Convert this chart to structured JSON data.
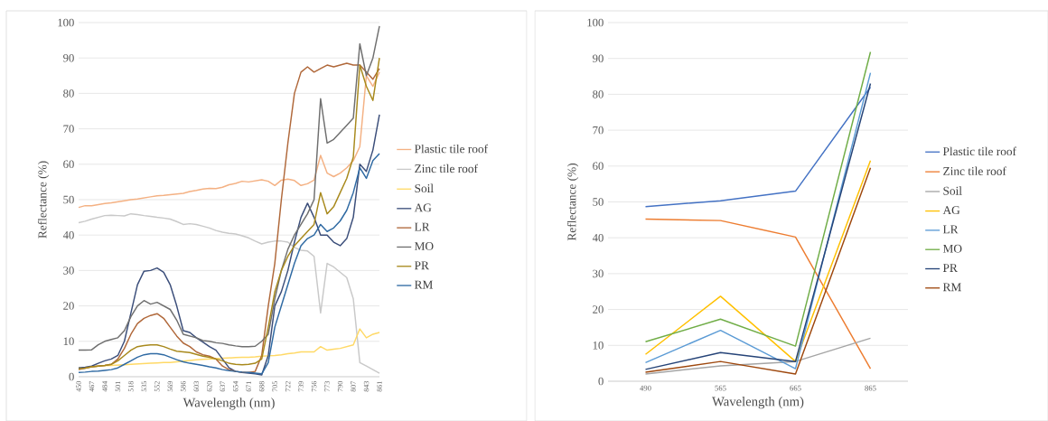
{
  "chart_data": [
    {
      "type": "line",
      "xlabel": "Wavelength (nm)",
      "ylabel": "Reflectance (%)",
      "categories": [
        "450",
        null,
        "467",
        null,
        "484",
        null,
        "501",
        null,
        "518",
        null,
        "535",
        null,
        "552",
        null,
        "569",
        null,
        "586",
        null,
        "603",
        null,
        "620",
        null,
        "637",
        null,
        "654",
        null,
        "671",
        null,
        "688",
        null,
        "705",
        null,
        "722",
        null,
        "739",
        null,
        "756",
        null,
        "773",
        null,
        "790",
        null,
        "807",
        null,
        "843",
        null,
        "861"
      ],
      "series": [
        {
          "name": "Plastic tile roof",
          "color": "#f4b183",
          "values": [
            47.8,
            48.3,
            48.3,
            48.6,
            48.9,
            49.1,
            49.4,
            49.7,
            50.0,
            50.2,
            50.5,
            50.8,
            51.1,
            51.2,
            51.4,
            51.6,
            51.8,
            52.3,
            52.6,
            53.0,
            53.2,
            53.1,
            53.5,
            54.2,
            54.6,
            55.2,
            55.0,
            55.3,
            55.6,
            55.2,
            54.0,
            55.5,
            55.8,
            55.4,
            54.0,
            54.5,
            55.5,
            62.5,
            57.5,
            56.5,
            57.5,
            59.0,
            61.0,
            65.0,
            85.0,
            82.0,
            86.0
          ]
        },
        {
          "name": "Zinc tile roof",
          "color": "#c9c9c9",
          "values": [
            43.5,
            43.9,
            44.5,
            45.0,
            45.5,
            45.6,
            45.5,
            45.4,
            46.0,
            45.8,
            45.5,
            45.3,
            45.0,
            44.8,
            44.5,
            43.8,
            43.0,
            43.2,
            43.0,
            42.5,
            42.0,
            41.3,
            40.8,
            40.5,
            40.3,
            39.8,
            39.2,
            38.3,
            37.5,
            38.0,
            38.3,
            38.3,
            38.0,
            36.5,
            35.7,
            35.5,
            34.0,
            18.0,
            32.0,
            31.0,
            29.5,
            28.0,
            22.0,
            4.0,
            3.0,
            2.0,
            1.0
          ]
        },
        {
          "name": "Soil",
          "color": "#ffd966",
          "values": [
            2.5,
            2.6,
            2.8,
            3.0,
            3.1,
            3.2,
            3.3,
            3.4,
            3.5,
            3.6,
            3.7,
            3.8,
            3.9,
            4.0,
            4.0,
            4.2,
            4.4,
            4.6,
            4.8,
            4.9,
            5.0,
            5.1,
            5.2,
            5.3,
            5.4,
            5.5,
            5.5,
            5.6,
            5.8,
            5.9,
            6.0,
            6.2,
            6.5,
            6.7,
            7.0,
            7.0,
            7.0,
            8.5,
            7.5,
            7.8,
            8.0,
            8.5,
            9.0,
            13.5,
            11.0,
            12.0,
            12.5
          ]
        },
        {
          "name": "AG",
          "color": "#3b4e7a",
          "values": [
            2.5,
            2.7,
            3,
            3.8,
            4.5,
            5,
            6,
            10,
            18,
            26,
            29.8,
            30,
            30.7,
            29.5,
            26,
            20,
            13,
            12.5,
            11,
            9.8,
            8.5,
            7.5,
            5,
            2.5,
            1.5,
            1.2,
            1,
            0.8,
            0.5,
            6,
            20,
            24,
            30,
            38,
            45,
            49,
            45,
            40,
            40,
            38,
            37,
            39,
            45,
            60,
            58,
            64,
            74
          ]
        },
        {
          "name": "LR",
          "color": "#b0683a",
          "values": [
            2,
            2.4,
            2.8,
            3,
            3.2,
            3.5,
            5,
            8,
            12,
            15,
            16.5,
            17.3,
            17.8,
            16.5,
            14,
            11.5,
            9.5,
            8.5,
            7,
            6.2,
            5.8,
            5,
            3,
            2,
            1.5,
            1.3,
            1.2,
            1.5,
            6,
            20,
            32,
            50,
            66,
            80,
            86,
            87.5,
            86,
            87,
            88,
            87.5,
            88,
            88.5,
            88,
            88,
            86,
            84,
            87
          ]
        },
        {
          "name": "MO",
          "color": "#6f6f6f",
          "values": [
            7.5,
            7.5,
            7.6,
            9,
            10,
            10.5,
            11,
            13,
            17,
            20,
            21.5,
            20.5,
            21,
            20,
            19,
            16,
            12,
            11.5,
            11,
            10.2,
            10,
            9.6,
            9.4,
            9,
            8.7,
            8.5,
            8.5,
            8.6,
            10,
            12,
            22,
            30,
            36,
            40,
            43,
            46,
            50,
            78.5,
            66,
            67,
            69,
            71,
            73,
            94,
            85,
            90,
            99
          ]
        },
        {
          "name": "PR",
          "color": "#a8891c",
          "values": [
            2.2,
            2.4,
            2.8,
            3,
            3.2,
            3.5,
            4.5,
            6,
            7.5,
            8.5,
            8.8,
            9,
            9,
            8.5,
            7.8,
            7.2,
            7,
            6.8,
            6.3,
            5.8,
            5.5,
            5,
            4.5,
            3.8,
            3.5,
            3.4,
            3.5,
            3.8,
            5,
            14,
            24,
            30,
            34,
            37,
            39,
            41,
            43,
            52,
            46,
            48,
            52,
            56,
            62,
            88,
            82,
            78,
            90
          ]
        },
        {
          "name": "RM",
          "color": "#2f6aa3",
          "values": [
            1.2,
            1.3,
            1.5,
            1.6,
            1.8,
            2,
            2.5,
            3.5,
            4.5,
            5.5,
            6.2,
            6.5,
            6.5,
            6.2,
            5.5,
            4.8,
            4.2,
            3.8,
            3.5,
            3.2,
            2.8,
            2.5,
            2,
            1.7,
            1.5,
            1.3,
            1.2,
            1,
            0.8,
            4,
            14,
            20,
            26,
            32,
            37,
            39,
            40,
            43,
            41,
            42,
            44,
            47,
            52,
            59,
            56,
            61,
            63
          ]
        }
      ],
      "ylim": [
        0,
        100
      ],
      "yticks": [
        0,
        10,
        20,
        30,
        40,
        50,
        60,
        70,
        80,
        90,
        100
      ],
      "grid": "y",
      "legend": "right"
    },
    {
      "type": "line",
      "xlabel": "Wavelength (nm)",
      "ylabel": "Reflectance (%)",
      "categories": [
        "490",
        "565",
        "665",
        "865"
      ],
      "series": [
        {
          "name": "Plastic tile roof",
          "color": "#4472c4",
          "values": [
            48.7,
            50.3,
            53,
            82
          ]
        },
        {
          "name": "Zinc tile roof",
          "color": "#ed7d31",
          "values": [
            45.2,
            44.8,
            40.2,
            3.5
          ]
        },
        {
          "name": "Soil",
          "color": "#a5a5a5",
          "values": [
            2,
            4.3,
            5.5,
            12
          ]
        },
        {
          "name": "AG",
          "color": "#ffc000",
          "values": [
            7.5,
            23.7,
            5.5,
            61.5
          ]
        },
        {
          "name": "LR",
          "color": "#5b9bd5",
          "values": [
            5.2,
            14.2,
            3.5,
            86
          ]
        },
        {
          "name": "MO",
          "color": "#70ad47",
          "values": [
            11,
            17.3,
            9.8,
            91.8
          ]
        },
        {
          "name": "PR",
          "color": "#264478",
          "values": [
            3.3,
            8,
            5.5,
            83
          ]
        },
        {
          "name": "RM",
          "color": "#9e480e",
          "values": [
            2.5,
            5.5,
            2,
            59.5
          ]
        }
      ],
      "ylim": [
        0,
        100
      ],
      "yticks": [
        0,
        10,
        20,
        30,
        40,
        50,
        60,
        70,
        80,
        90,
        100
      ],
      "grid": "y",
      "legend": "right"
    }
  ]
}
